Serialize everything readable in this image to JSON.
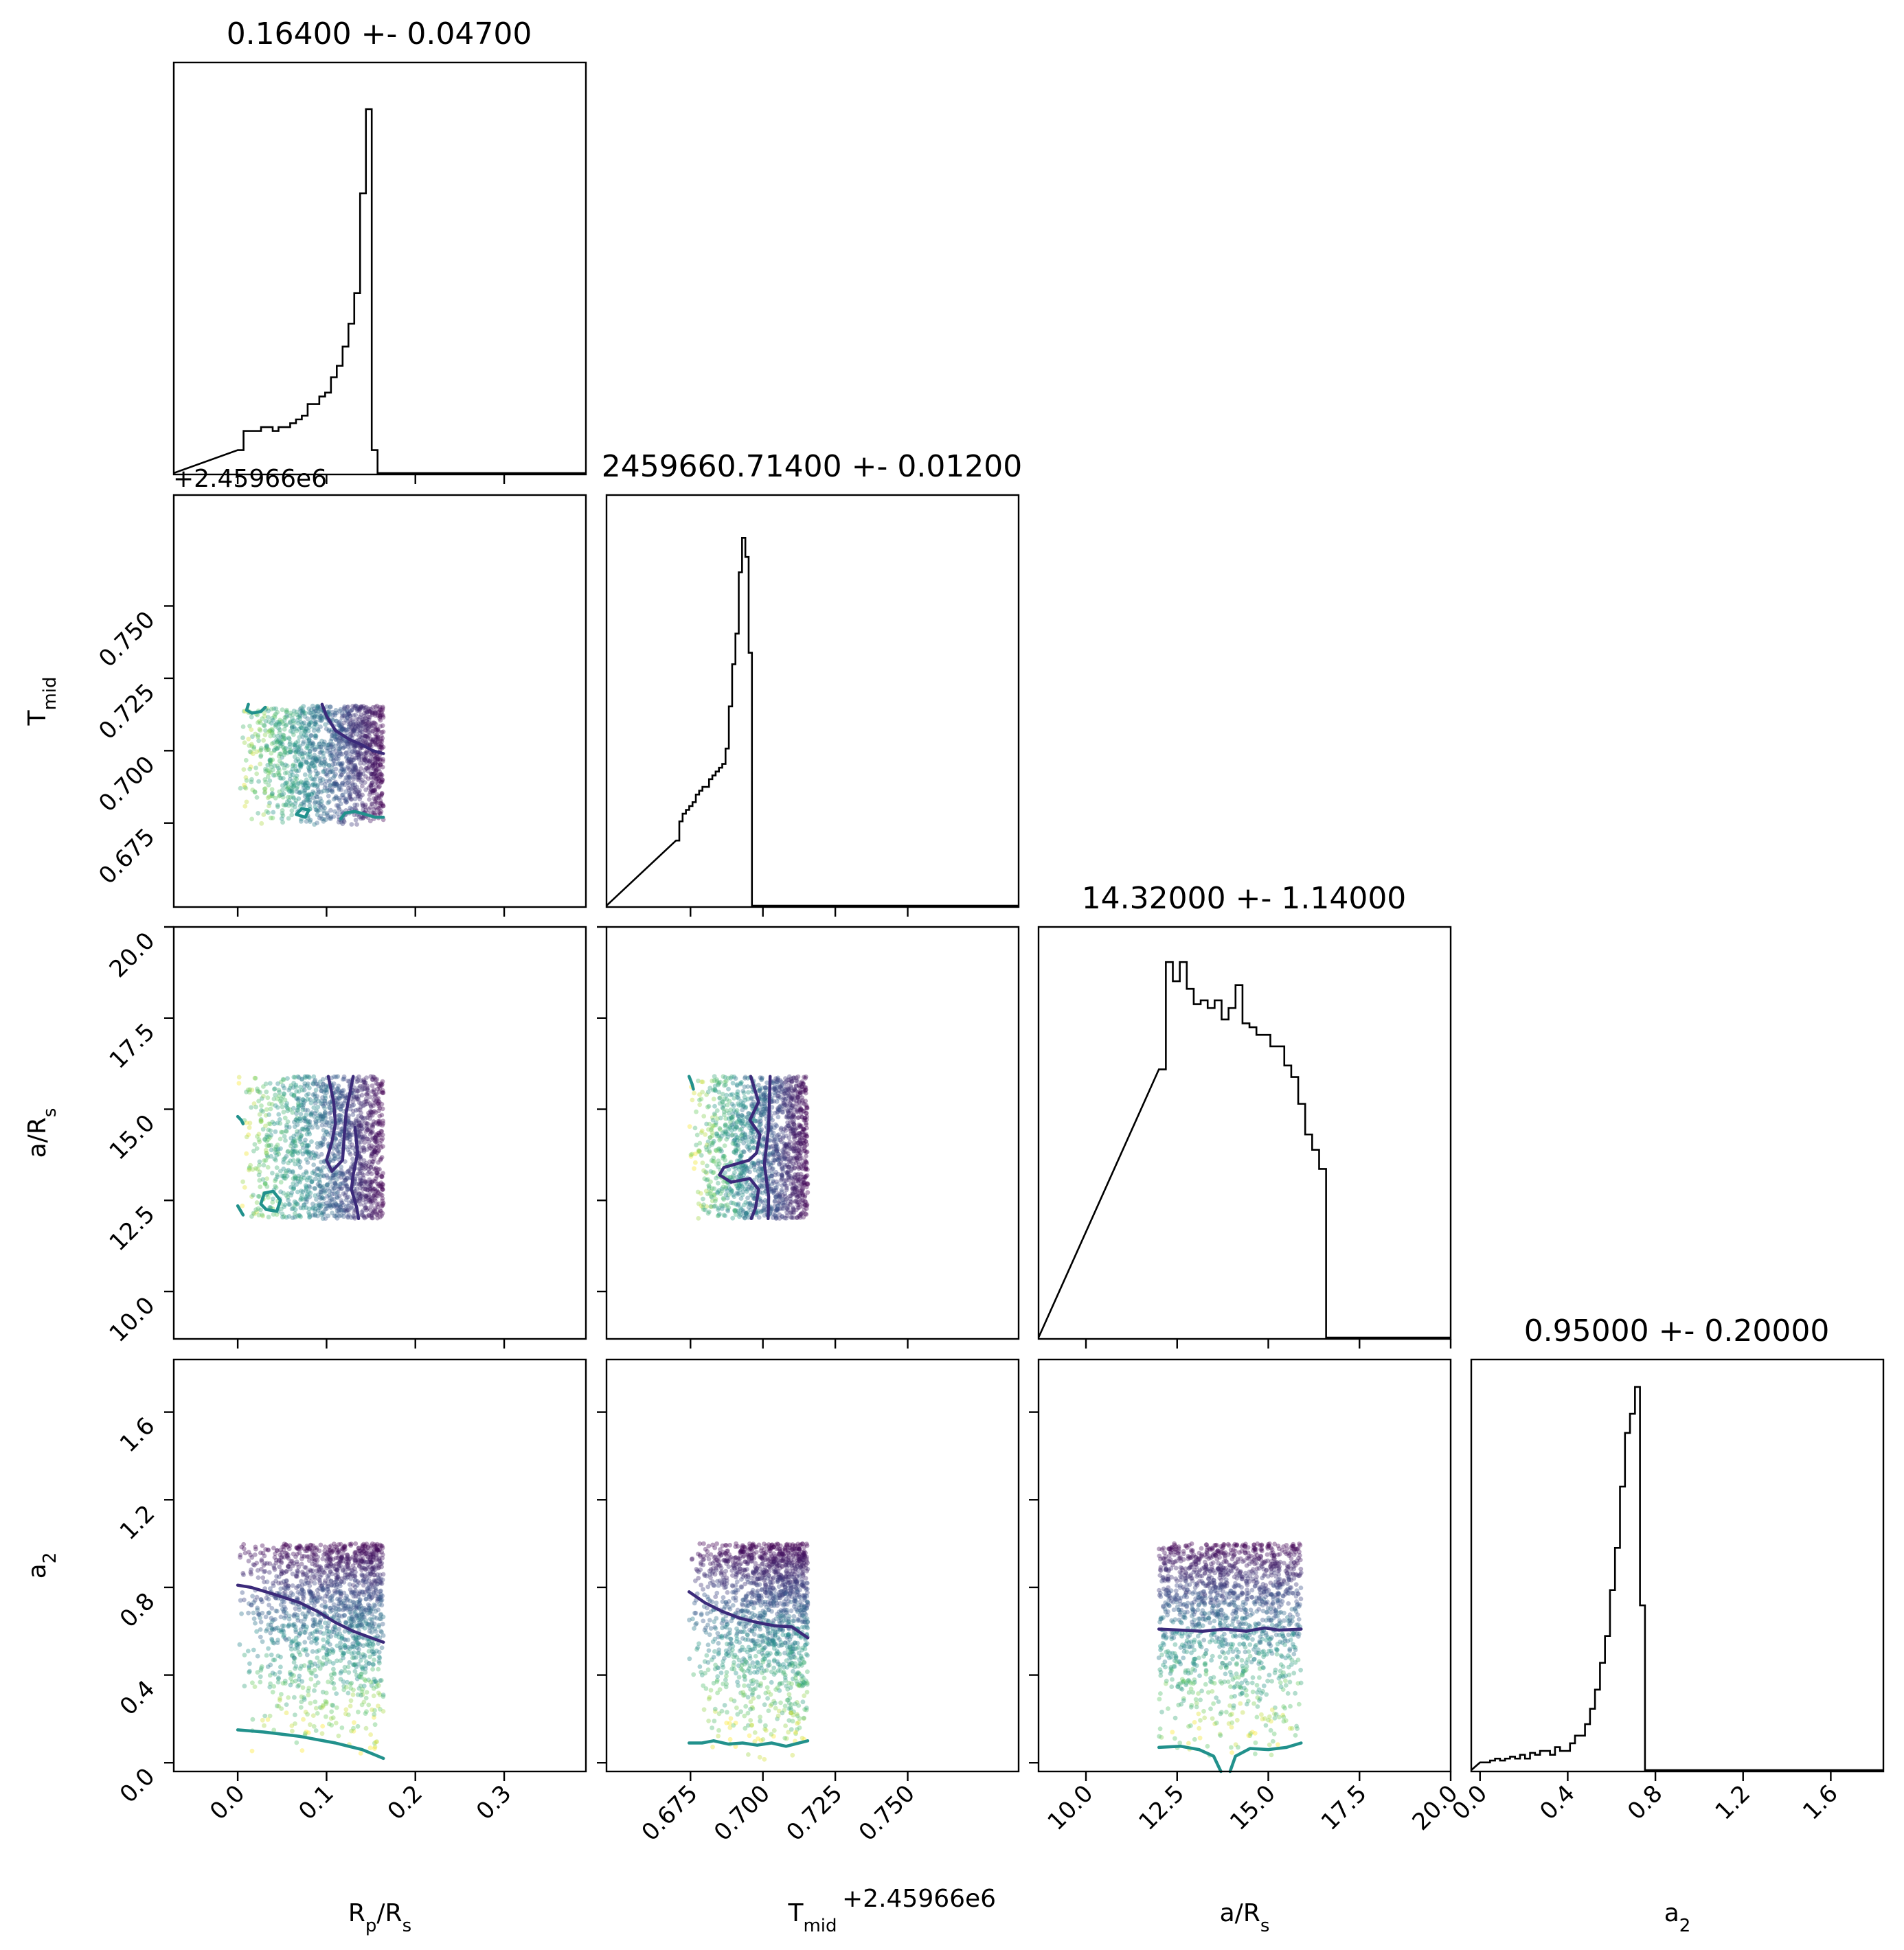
{
  "chart_data": {
    "type": "corner",
    "parameters": [
      {
        "id": "rp",
        "label": "R",
        "label_sub": "p",
        "label_tail": "/R",
        "label_tail_sub": "s",
        "lim": [
          -0.072,
          0.392
        ]
      },
      {
        "id": "tmid",
        "label": "T",
        "label_sub": "mid",
        "label_tail": "",
        "label_tail_sub": "",
        "lim": [
          0.646,
          0.7883
        ]
      },
      {
        "id": "ars",
        "label": "a/R",
        "label_sub": "s",
        "label_tail": "",
        "label_tail_sub": "",
        "lim": [
          8.7,
          20.0
        ]
      },
      {
        "id": "a2",
        "label": "a",
        "label_sub": "2",
        "label_tail": "",
        "label_tail_sub": "",
        "lim": [
          -0.04,
          1.84
        ]
      }
    ],
    "titles": [
      "0.16400 +- 0.04700",
      "2459660.71400 +- 0.01200",
      "14.32000 +- 1.14000",
      "0.95000 +- 0.20000"
    ],
    "ticks": {
      "rp": [
        "0.0",
        "0.1",
        "0.2",
        "0.3"
      ],
      "tmid": [
        "0.675",
        "0.700",
        "0.725",
        "0.750"
      ],
      "ars": [
        "10.0",
        "12.5",
        "15.0",
        "17.5",
        "20.0"
      ],
      "a2": [
        "0.0",
        "0.4",
        "0.8",
        "1.2",
        "1.6"
      ]
    },
    "offset_text": "+2.45966e6",
    "histograms": [
      {
        "param": "rp",
        "bin_edges_start": 0.0,
        "bin_width": 0.00656,
        "counts": [
          0.06,
          0.11,
          0.11,
          0.11,
          0.12,
          0.12,
          0.11,
          0.12,
          0.12,
          0.13,
          0.14,
          0.15,
          0.18,
          0.18,
          0.2,
          0.21,
          0.25,
          0.28,
          0.33,
          0.39,
          0.47,
          0.73,
          0.95,
          0.06,
          0,
          0,
          0,
          0,
          0,
          0,
          0,
          0,
          0,
          0,
          0,
          0,
          0,
          0,
          0,
          0
        ]
      },
      {
        "param": "tmid",
        "bin_edges_start": 0.67,
        "bin_width": 0.00114,
        "counts": [
          0.17,
          0.22,
          0.24,
          0.25,
          0.26,
          0.27,
          0.29,
          0.3,
          0.31,
          0.31,
          0.33,
          0.34,
          0.35,
          0.36,
          0.37,
          0.41,
          0.52,
          0.63,
          0.71,
          0.87,
          0.96,
          0.91,
          0.66,
          0,
          0,
          0,
          0,
          0,
          0,
          0,
          0,
          0
        ]
      },
      {
        "param": "ars",
        "bin_edges_start": 12.0,
        "bin_width": 0.191,
        "counts": [
          0.7,
          0.98,
          0.93,
          0.98,
          0.91,
          0.87,
          0.88,
          0.86,
          0.88,
          0.83,
          0.86,
          0.92,
          0.82,
          0.81,
          0.79,
          0.79,
          0.76,
          0.76,
          0.71,
          0.68,
          0.61,
          0.53,
          0.49,
          0.44,
          0,
          0,
          0,
          0,
          0,
          0,
          0,
          0,
          0,
          0,
          0,
          0
        ]
      },
      {
        "param": "a2",
        "bin_edges_start": 0.0,
        "bin_width": 0.0228,
        "counts": [
          0.02,
          0.02,
          0.025,
          0.03,
          0.025,
          0.03,
          0.035,
          0.03,
          0.04,
          0.03,
          0.045,
          0.04,
          0.05,
          0.05,
          0.04,
          0.06,
          0.05,
          0.05,
          0.07,
          0.09,
          0.09,
          0.12,
          0.16,
          0.21,
          0.28,
          0.35,
          0.47,
          0.58,
          0.74,
          0.88,
          0.93,
          1.0,
          0.43,
          0,
          0,
          0,
          0,
          0,
          0,
          0,
          0
        ]
      }
    ],
    "pair_panels": [
      {
        "x": "rp",
        "y": "tmid",
        "x_range": [
          0.0,
          0.164
        ],
        "y_range": [
          0.6745,
          0.7155
        ]
      },
      {
        "x": "rp",
        "y": "ars",
        "x_range": [
          0.0,
          0.164
        ],
        "y_range": [
          12.0,
          15.9
        ]
      },
      {
        "x": "tmid",
        "y": "ars",
        "x_range": [
          0.6745,
          0.7155
        ],
        "y_range": [
          12.0,
          15.9
        ]
      },
      {
        "x": "rp",
        "y": "a2",
        "x_range": [
          0.0,
          0.164
        ],
        "y_range": [
          0.0,
          1.0
        ]
      },
      {
        "x": "tmid",
        "y": "a2",
        "x_range": [
          0.6745,
          0.7155
        ],
        "y_range": [
          0.0,
          1.0
        ]
      },
      {
        "x": "ars",
        "y": "a2",
        "x_range": [
          12.0,
          15.9
        ],
        "y_range": [
          0.0,
          1.0
        ]
      }
    ],
    "contours": [
      {
        "panel": "rp-tmid",
        "color": "#3b2a7a",
        "points": [
          [
            0.095,
            0.716
          ],
          [
            0.1,
            0.712
          ],
          [
            0.11,
            0.707
          ],
          [
            0.125,
            0.704
          ],
          [
            0.14,
            0.702
          ],
          [
            0.152,
            0.7
          ],
          [
            0.164,
            0.699
          ]
        ]
      },
      {
        "panel": "rp-tmid",
        "color": "#21918c",
        "points": [
          [
            0.012,
            0.716
          ],
          [
            0.01,
            0.714
          ],
          [
            0.016,
            0.713
          ],
          [
            0.026,
            0.7135
          ],
          [
            0.031,
            0.715
          ]
        ]
      },
      {
        "panel": "rp-tmid",
        "color": "#21918c",
        "points": [
          [
            0.066,
            0.678
          ],
          [
            0.072,
            0.68
          ],
          [
            0.08,
            0.6795
          ],
          [
            0.076,
            0.677
          ],
          [
            0.066,
            0.678
          ]
        ]
      },
      {
        "panel": "rp-tmid",
        "color": "#21918c",
        "points": [
          [
            0.116,
            0.6765
          ],
          [
            0.121,
            0.6785
          ],
          [
            0.132,
            0.679
          ],
          [
            0.144,
            0.678
          ],
          [
            0.155,
            0.677
          ],
          [
            0.164,
            0.677
          ]
        ]
      },
      {
        "panel": "rp-ars",
        "color": "#3b2a7a",
        "points": [
          [
            0.102,
            15.9
          ],
          [
            0.108,
            15.2
          ],
          [
            0.11,
            14.6
          ],
          [
            0.106,
            14.1
          ],
          [
            0.1,
            13.6
          ],
          [
            0.106,
            13.3
          ],
          [
            0.118,
            13.6
          ],
          [
            0.12,
            14.3
          ],
          [
            0.122,
            14.9
          ],
          [
            0.126,
            15.4
          ],
          [
            0.13,
            15.9
          ]
        ]
      },
      {
        "panel": "rp-ars",
        "color": "#3b2a7a",
        "points": [
          [
            0.132,
            14.5
          ],
          [
            0.135,
            13.8
          ],
          [
            0.13,
            13.2
          ],
          [
            0.128,
            12.8
          ],
          [
            0.134,
            12.3
          ],
          [
            0.136,
            12.0
          ]
        ]
      },
      {
        "panel": "rp-ars",
        "color": "#21918c",
        "points": [
          [
            0.0,
            14.8
          ],
          [
            0.004,
            14.7
          ],
          [
            0.006,
            14.6
          ]
        ]
      },
      {
        "panel": "rp-ars",
        "color": "#21918c",
        "points": [
          [
            0.026,
            12.4
          ],
          [
            0.03,
            12.7
          ],
          [
            0.04,
            12.75
          ],
          [
            0.048,
            12.5
          ],
          [
            0.044,
            12.2
          ],
          [
            0.032,
            12.25
          ],
          [
            0.026,
            12.4
          ]
        ]
      },
      {
        "panel": "rp-ars",
        "color": "#21918c",
        "points": [
          [
            0.0,
            12.35
          ],
          [
            0.006,
            12.1
          ]
        ]
      },
      {
        "panel": "tmid-ars",
        "color": "#3b2a7a",
        "points": [
          [
            0.6958,
            15.9
          ],
          [
            0.6985,
            15.2
          ],
          [
            0.6955,
            14.7
          ],
          [
            0.699,
            14.3
          ],
          [
            0.6978,
            13.8
          ],
          [
            0.6952,
            13.6
          ],
          [
            0.6865,
            13.4
          ],
          [
            0.685,
            13.2
          ],
          [
            0.689,
            13.0
          ],
          [
            0.6955,
            13.1
          ],
          [
            0.6985,
            12.8
          ],
          [
            0.6975,
            12.3
          ],
          [
            0.696,
            12.0
          ]
        ]
      },
      {
        "panel": "tmid-ars",
        "color": "#3b2a7a",
        "points": [
          [
            0.7025,
            15.9
          ],
          [
            0.702,
            14.5
          ],
          [
            0.7005,
            13.5
          ],
          [
            0.702,
            12.6
          ],
          [
            0.7018,
            12.0
          ]
        ]
      },
      {
        "panel": "tmid-ars",
        "color": "#21918c",
        "points": [
          [
            0.6745,
            15.9
          ],
          [
            0.6755,
            15.7
          ],
          [
            0.676,
            15.55
          ]
        ]
      },
      {
        "panel": "rp-a2",
        "color": "#3b2a7a",
        "points": [
          [
            0.0,
            0.81
          ],
          [
            0.015,
            0.8
          ],
          [
            0.04,
            0.77
          ],
          [
            0.07,
            0.73
          ],
          [
            0.09,
            0.69
          ],
          [
            0.11,
            0.64
          ],
          [
            0.13,
            0.6
          ],
          [
            0.15,
            0.57
          ],
          [
            0.164,
            0.55
          ]
        ]
      },
      {
        "panel": "rp-a2",
        "color": "#21918c",
        "points": [
          [
            0.0,
            0.15
          ],
          [
            0.03,
            0.14
          ],
          [
            0.07,
            0.12
          ],
          [
            0.11,
            0.09
          ],
          [
            0.14,
            0.06
          ],
          [
            0.164,
            0.02
          ]
        ]
      },
      {
        "panel": "tmid-a2",
        "color": "#3b2a7a",
        "points": [
          [
            0.6745,
            0.78
          ],
          [
            0.68,
            0.73
          ],
          [
            0.686,
            0.69
          ],
          [
            0.692,
            0.66
          ],
          [
            0.698,
            0.64
          ],
          [
            0.704,
            0.625
          ],
          [
            0.71,
            0.62
          ],
          [
            0.7155,
            0.57
          ]
        ]
      },
      {
        "panel": "tmid-a2",
        "color": "#21918c",
        "points": [
          [
            0.6745,
            0.09
          ],
          [
            0.679,
            0.09
          ],
          [
            0.683,
            0.1
          ],
          [
            0.688,
            0.085
          ],
          [
            0.693,
            0.09
          ],
          [
            0.698,
            0.08
          ],
          [
            0.703,
            0.09
          ],
          [
            0.708,
            0.075
          ],
          [
            0.7155,
            0.1
          ]
        ]
      },
      {
        "panel": "ars-a2",
        "color": "#3b2a7a",
        "points": [
          [
            12.0,
            0.61
          ],
          [
            12.6,
            0.605
          ],
          [
            13.2,
            0.6
          ],
          [
            13.8,
            0.61
          ],
          [
            14.4,
            0.6
          ],
          [
            14.9,
            0.615
          ],
          [
            15.3,
            0.605
          ],
          [
            15.9,
            0.61
          ]
        ]
      },
      {
        "panel": "ars-a2",
        "color": "#21918c",
        "points": [
          [
            12.0,
            0.07
          ],
          [
            12.6,
            0.075
          ],
          [
            13.1,
            0.06
          ],
          [
            13.5,
            0.03
          ],
          [
            13.7,
            -0.04
          ]
        ]
      },
      {
        "panel": "ars-a2",
        "color": "#21918c",
        "points": [
          [
            13.95,
            -0.04
          ],
          [
            14.1,
            0.03
          ],
          [
            14.5,
            0.065
          ],
          [
            15.0,
            0.06
          ],
          [
            15.5,
            0.07
          ],
          [
            15.9,
            0.09
          ]
        ]
      }
    ],
    "colors": {
      "hist_line": "#000000",
      "contour_inner": "#3b2a7a",
      "contour_outer": "#21918c",
      "points_palette": [
        "#440154",
        "#3b528b",
        "#21918c",
        "#5ec962",
        "#fde725"
      ]
    }
  }
}
